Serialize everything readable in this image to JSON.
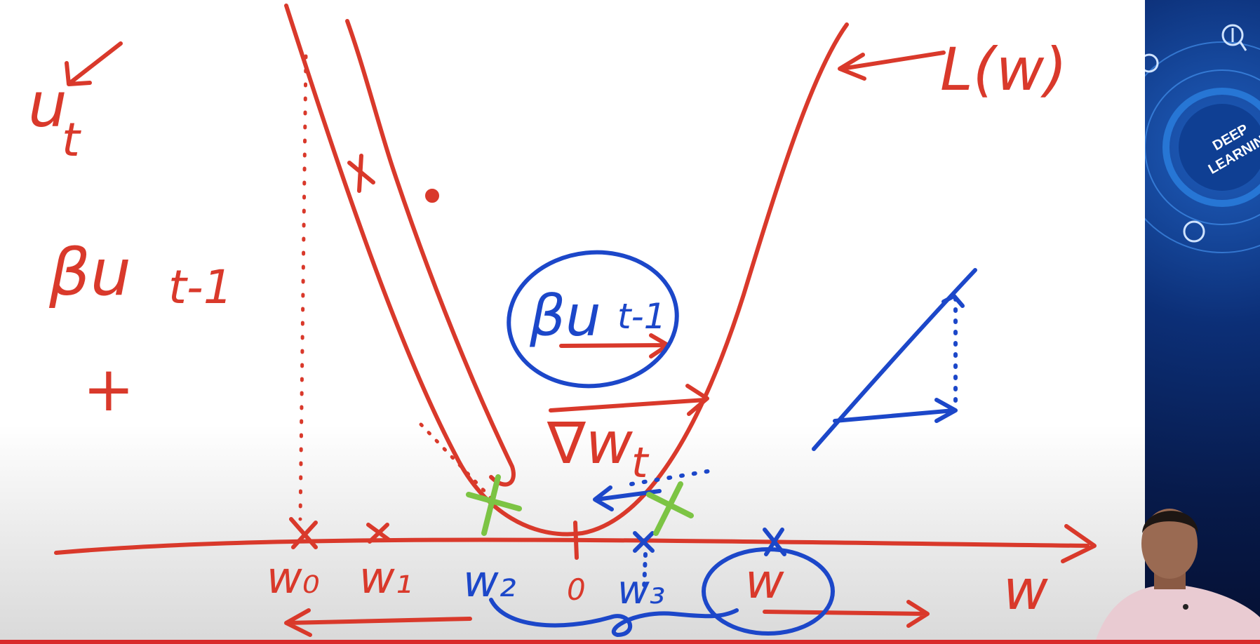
{
  "whiteboard": {
    "labels": {
      "loss": "L(w)",
      "velocity": "u",
      "velocity_sub": "t",
      "momentum_term": "βu",
      "momentum_sub": "t-1",
      "circled_momentum": "βu",
      "circled_sub": "t-1",
      "gradient": "∇w",
      "gradient_sub": "t",
      "plus": "+",
      "w0": "w₀",
      "w1": "w₁",
      "w2": "w₂",
      "w3": "w₃",
      "origin": "0",
      "w_circled": "w",
      "axis": "w"
    },
    "colors": {
      "red_ink": "#d9392b",
      "blue_ink": "#1c47c9",
      "green_ink": "#7cc444"
    }
  },
  "side_panel": {
    "badge_text_line1": "DEEP",
    "badge_text_line2": "LEARNING",
    "bg_color": "#0b2a6b",
    "icons": [
      "magnifier-icon",
      "brain-icon",
      "chip-icon"
    ]
  },
  "presenter": {
    "icon": "person-icon"
  }
}
